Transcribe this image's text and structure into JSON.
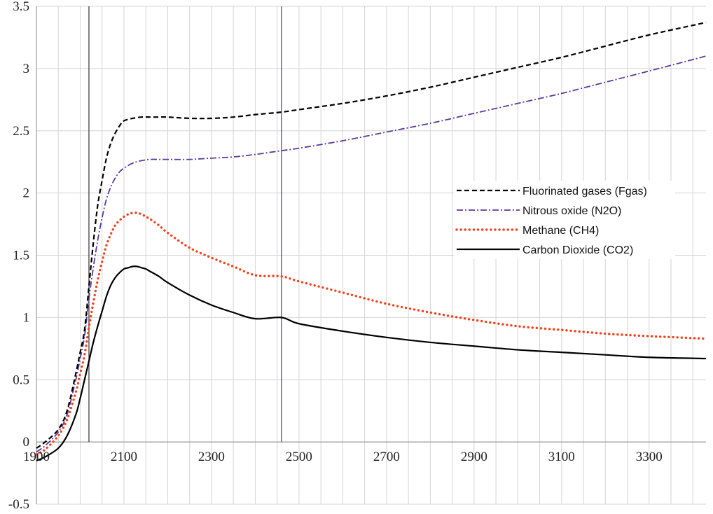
{
  "chart_data": {
    "type": "line",
    "title": "",
    "xlabel": "",
    "ylabel": "",
    "xlim": [
      1900,
      3430
    ],
    "ylim": [
      -0.5,
      3.5
    ],
    "grid": true,
    "legend_position": "right",
    "x_ticks": [
      1900,
      2100,
      2300,
      2500,
      2700,
      2900,
      3100,
      3300
    ],
    "x_tick_labels": [
      "1900",
      "2100",
      "2300",
      "2500",
      "2700",
      "2900",
      "3100",
      "3300"
    ],
    "y_ticks": [
      -0.5,
      0,
      0.5,
      1,
      1.5,
      2,
      2.5,
      3,
      3.5
    ],
    "y_tick_labels": [
      "-0.5",
      "0",
      "0.5",
      "1",
      "1.5",
      "2",
      "2.5",
      "3",
      "3.5"
    ],
    "vertical_lines": [
      {
        "x": 2020,
        "color": "#333333"
      },
      {
        "x": 2460,
        "color": "#7b2a5a"
      }
    ],
    "series": [
      {
        "name": "Fluorinated gases (Fgas)",
        "color": "#000000",
        "dash": "dashed",
        "x": [
          1900,
          1920,
          1950,
          1970,
          1990,
          2000,
          2010,
          2020,
          2030,
          2040,
          2050,
          2060,
          2070,
          2080,
          2090,
          2100,
          2120,
          2140,
          2160,
          2180,
          2200,
          2250,
          2300,
          2350,
          2400,
          2460,
          2500,
          2600,
          2700,
          2800,
          2900,
          3000,
          3100,
          3200,
          3300,
          3430
        ],
        "y": [
          -0.05,
          0.0,
          0.1,
          0.25,
          0.55,
          0.72,
          0.9,
          1.25,
          1.6,
          1.9,
          2.1,
          2.28,
          2.4,
          2.48,
          2.54,
          2.58,
          2.6,
          2.61,
          2.61,
          2.61,
          2.61,
          2.6,
          2.6,
          2.61,
          2.63,
          2.65,
          2.67,
          2.72,
          2.78,
          2.85,
          2.93,
          3.01,
          3.09,
          3.18,
          3.27,
          3.37
        ]
      },
      {
        "name": "Nitrous oxide (N2O)",
        "color": "#5b3a9c",
        "dash": "dashdot",
        "x": [
          1900,
          1920,
          1950,
          1970,
          1990,
          2000,
          2010,
          2020,
          2030,
          2040,
          2050,
          2060,
          2070,
          2080,
          2090,
          2100,
          2120,
          2140,
          2160,
          2180,
          2200,
          2250,
          2300,
          2350,
          2400,
          2460,
          2500,
          2600,
          2700,
          2800,
          2900,
          3000,
          3100,
          3200,
          3300,
          3430
        ],
        "y": [
          -0.08,
          -0.03,
          0.08,
          0.22,
          0.5,
          0.67,
          0.85,
          1.15,
          1.4,
          1.62,
          1.8,
          1.95,
          2.05,
          2.12,
          2.17,
          2.2,
          2.24,
          2.26,
          2.27,
          2.27,
          2.27,
          2.27,
          2.28,
          2.29,
          2.31,
          2.34,
          2.36,
          2.42,
          2.49,
          2.56,
          2.64,
          2.72,
          2.8,
          2.89,
          2.98,
          3.1
        ]
      },
      {
        "name": "Methane (CH4)",
        "color": "#f0441e",
        "dash": "dotted",
        "x": [
          1900,
          1920,
          1950,
          1970,
          1990,
          2000,
          2010,
          2020,
          2030,
          2040,
          2050,
          2060,
          2070,
          2080,
          2090,
          2100,
          2110,
          2120,
          2130,
          2140,
          2150,
          2160,
          2180,
          2200,
          2250,
          2300,
          2350,
          2400,
          2460,
          2500,
          2600,
          2700,
          2800,
          2900,
          3000,
          3100,
          3200,
          3300,
          3430
        ],
        "y": [
          -0.1,
          -0.06,
          0.05,
          0.18,
          0.4,
          0.55,
          0.7,
          0.92,
          1.12,
          1.3,
          1.45,
          1.58,
          1.67,
          1.74,
          1.78,
          1.81,
          1.83,
          1.84,
          1.84,
          1.83,
          1.81,
          1.79,
          1.74,
          1.68,
          1.56,
          1.48,
          1.41,
          1.34,
          1.33,
          1.29,
          1.2,
          1.11,
          1.04,
          0.98,
          0.93,
          0.9,
          0.87,
          0.85,
          0.83
        ]
      },
      {
        "name": "Carbon Dioxide (CO2)",
        "color": "#000000",
        "dash": "solid",
        "x": [
          1900,
          1920,
          1950,
          1970,
          1990,
          2000,
          2010,
          2020,
          2030,
          2040,
          2050,
          2060,
          2070,
          2080,
          2090,
          2100,
          2110,
          2120,
          2130,
          2140,
          2150,
          2160,
          2180,
          2200,
          2250,
          2300,
          2350,
          2400,
          2460,
          2500,
          2600,
          2700,
          2800,
          2900,
          3000,
          3100,
          3200,
          3300,
          3430
        ],
        "y": [
          -0.15,
          -0.12,
          -0.05,
          0.05,
          0.22,
          0.35,
          0.5,
          0.65,
          0.8,
          0.93,
          1.05,
          1.17,
          1.26,
          1.32,
          1.36,
          1.39,
          1.4,
          1.41,
          1.41,
          1.4,
          1.39,
          1.37,
          1.33,
          1.28,
          1.18,
          1.1,
          1.04,
          0.99,
          1.0,
          0.95,
          0.89,
          0.84,
          0.8,
          0.77,
          0.74,
          0.72,
          0.7,
          0.68,
          0.67
        ]
      }
    ]
  }
}
